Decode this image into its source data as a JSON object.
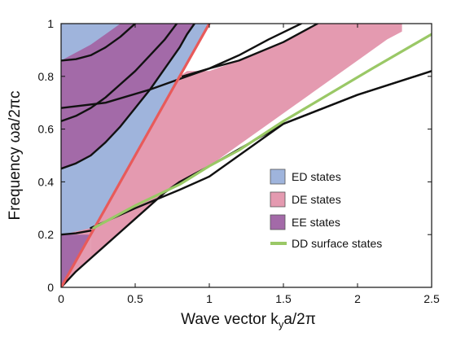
{
  "chart_data": {
    "type": "area",
    "xlabel": {
      "main": "Wave vector  k",
      "sub": "y",
      "tail": "a/2π"
    },
    "ylabel": "Frequency  ωa/2πc",
    "xlim": [
      0,
      2.5
    ],
    "ylim": [
      0,
      1
    ],
    "xticks": [
      0,
      0.5,
      1,
      1.5,
      2,
      2.5
    ],
    "xtick_labels": [
      "0",
      "0.5",
      "1",
      "1.5",
      "2",
      "2.5"
    ],
    "yticks": [
      0,
      0.2,
      0.4,
      0.6,
      0.8,
      1
    ],
    "ytick_labels": [
      "0",
      "0.2",
      "0.4",
      "0.6",
      "0.8",
      "1"
    ],
    "grid": false,
    "legend_position": "center-right",
    "legend": [
      {
        "label": "ED states",
        "kind": "patch",
        "color": "#9fb4dc"
      },
      {
        "label": "DE states",
        "kind": "patch",
        "color": "#e49ab0"
      },
      {
        "label": "EE  states",
        "kind": "patch",
        "color": "#a36aa8"
      },
      {
        "label": "DD surface states",
        "kind": "line",
        "color": "#9ac866"
      }
    ],
    "colors": {
      "ED": "#9fb4dc",
      "DE": "#e49ab0",
      "EE": "#a36aa8",
      "light_line": "#e85a5a",
      "surface": "#9ac866",
      "band_edge": "#111111"
    },
    "regions": [
      {
        "name": "ED states",
        "color_key": "ED",
        "boundary": [
          [
            0,
            0
          ],
          [
            1.0,
            1.0
          ],
          [
            0,
            1.0
          ]
        ]
      },
      {
        "name": "DE states",
        "color_key": "DE",
        "boundary": [
          [
            0,
            0
          ],
          [
            0.1,
            0.06
          ],
          [
            0.2,
            0.11
          ],
          [
            0.2,
            0.225
          ],
          [
            0.05,
            0.205
          ],
          [
            0,
            0.2
          ]
        ]
      },
      {
        "name": "DE states",
        "color_key": "DE",
        "boundary": [
          [
            0.2,
            0.11
          ],
          [
            0.3,
            0.16
          ],
          [
            0.4,
            0.21
          ],
          [
            0.5,
            0.26
          ],
          [
            0.6,
            0.31
          ],
          [
            0.7,
            0.36
          ],
          [
            0.8,
            0.4
          ],
          [
            0.9,
            0.43
          ],
          [
            1.0,
            0.46
          ],
          [
            1.2,
            0.54
          ],
          [
            1.4,
            0.62
          ],
          [
            1.6,
            0.7
          ],
          [
            1.8,
            0.78
          ],
          [
            2.0,
            0.86
          ],
          [
            2.2,
            0.94
          ],
          [
            2.3,
            0.97
          ],
          [
            2.3,
            1.0
          ],
          [
            2.0,
            1.0
          ],
          [
            1.73,
            1.0
          ],
          [
            1.5,
            0.93
          ],
          [
            1.2,
            0.86
          ],
          [
            1.0,
            0.82
          ],
          [
            0.85,
            0.82
          ],
          [
            0.8,
            0.8
          ],
          [
            0.7,
            0.7
          ],
          [
            0.6,
            0.6
          ],
          [
            0.5,
            0.5
          ],
          [
            0.4,
            0.4
          ],
          [
            0.3,
            0.3
          ],
          [
            0.22,
            0.225
          ],
          [
            0.2,
            0.225
          ]
        ]
      },
      {
        "name": "EE states",
        "color_key": "EE",
        "boundary": [
          [
            0,
            0
          ],
          [
            0,
            0.2
          ],
          [
            0.2,
            0.2
          ],
          [
            0.2,
            0.2
          ],
          [
            0.1,
            0.1
          ]
        ]
      },
      {
        "name": "EE states",
        "color_key": "EE",
        "boundary": [
          [
            0,
            0.45
          ],
          [
            0.1,
            0.47
          ],
          [
            0.2,
            0.5
          ],
          [
            0.3,
            0.55
          ],
          [
            0.4,
            0.61
          ],
          [
            0.5,
            0.68
          ],
          [
            0.6,
            0.75
          ],
          [
            0.7,
            0.83
          ],
          [
            0.8,
            0.91
          ],
          [
            0.85,
            0.96
          ],
          [
            0.9,
            1.0
          ],
          [
            0.4,
            1.0
          ],
          [
            0.3,
            0.96
          ],
          [
            0.2,
            0.92
          ],
          [
            0.1,
            0.89
          ],
          [
            0,
            0.86
          ]
        ]
      }
    ],
    "series": [
      {
        "kind": "band",
        "color_key": "band_edge",
        "points": [
          [
            0,
            0.2
          ],
          [
            0.1,
            0.205
          ],
          [
            0.2,
            0.215
          ]
        ]
      },
      {
        "kind": "band",
        "color_key": "band_edge",
        "points": [
          [
            0,
            0
          ],
          [
            0.1,
            0.06
          ],
          [
            0.2,
            0.11
          ],
          [
            0.3,
            0.16
          ],
          [
            0.4,
            0.21
          ],
          [
            0.5,
            0.26
          ],
          [
            0.6,
            0.31
          ],
          [
            0.7,
            0.36
          ],
          [
            0.8,
            0.4
          ],
          [
            0.9,
            0.43
          ],
          [
            1.0,
            0.46
          ]
        ]
      },
      {
        "kind": "band",
        "color_key": "band_edge",
        "points": [
          [
            1.0,
            0.46
          ],
          [
            1.5,
            0.62
          ],
          [
            2.0,
            0.73
          ],
          [
            2.5,
            0.82
          ]
        ]
      },
      {
        "kind": "band",
        "color_key": "band_edge",
        "points": [
          [
            0.2,
            0.225
          ],
          [
            0.5,
            0.3
          ],
          [
            0.8,
            0.37
          ],
          [
            1.0,
            0.42
          ],
          [
            1.5,
            0.62
          ],
          [
            2.0,
            0.73
          ],
          [
            2.5,
            0.82
          ]
        ]
      },
      {
        "kind": "band",
        "color_key": "band_edge",
        "points": [
          [
            0,
            0.45
          ],
          [
            0.1,
            0.47
          ],
          [
            0.2,
            0.5
          ],
          [
            0.3,
            0.55
          ],
          [
            0.4,
            0.61
          ],
          [
            0.5,
            0.68
          ],
          [
            0.6,
            0.75
          ],
          [
            0.7,
            0.83
          ],
          [
            0.8,
            0.91
          ],
          [
            0.85,
            0.96
          ],
          [
            0.9,
            1.0
          ]
        ]
      },
      {
        "kind": "band",
        "color_key": "band_edge",
        "points": [
          [
            0,
            0.63
          ],
          [
            0.1,
            0.65
          ],
          [
            0.2,
            0.68
          ],
          [
            0.3,
            0.72
          ],
          [
            0.4,
            0.77
          ],
          [
            0.5,
            0.82
          ],
          [
            0.6,
            0.88
          ],
          [
            0.7,
            0.94
          ],
          [
            0.78,
            1.0
          ]
        ]
      },
      {
        "kind": "band",
        "color_key": "band_edge",
        "points": [
          [
            0,
            0.68
          ],
          [
            0.3,
            0.7
          ],
          [
            0.6,
            0.75
          ],
          [
            0.8,
            0.79
          ],
          [
            1.0,
            0.83
          ],
          [
            1.2,
            0.86
          ],
          [
            1.5,
            0.93
          ],
          [
            1.73,
            1.0
          ]
        ]
      },
      {
        "kind": "band",
        "color_key": "band_edge",
        "points": [
          [
            0,
            0.86
          ],
          [
            0.1,
            0.865
          ],
          [
            0.2,
            0.88
          ],
          [
            0.3,
            0.91
          ],
          [
            0.4,
            0.95
          ],
          [
            0.5,
            1.0
          ]
        ]
      },
      {
        "kind": "band",
        "color_key": "band_edge",
        "points": [
          [
            0.82,
            0.8
          ],
          [
            1.0,
            0.83
          ],
          [
            1.2,
            0.88
          ],
          [
            1.4,
            0.94
          ],
          [
            1.62,
            1.0
          ]
        ]
      },
      {
        "kind": "light_line",
        "color_key": "light_line",
        "points": [
          [
            0,
            0
          ],
          [
            1.0,
            1.0
          ]
        ]
      },
      {
        "kind": "surface",
        "color_key": "surface",
        "points": [
          [
            0.22,
            0.225
          ],
          [
            0.5,
            0.31
          ],
          [
            0.8,
            0.39
          ],
          [
            1.0,
            0.46
          ],
          [
            1.2,
            0.52
          ],
          [
            1.5,
            0.63
          ],
          [
            1.8,
            0.73
          ],
          [
            2.1,
            0.83
          ],
          [
            2.5,
            0.96
          ]
        ]
      }
    ]
  }
}
